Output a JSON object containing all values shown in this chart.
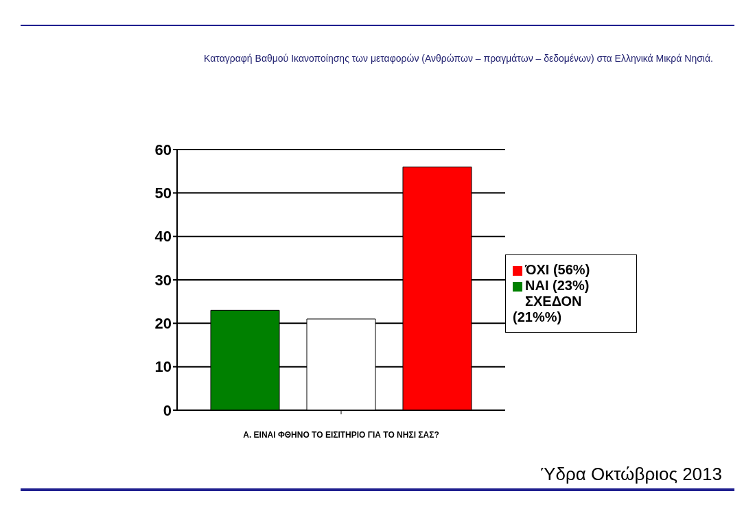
{
  "chart_data": {
    "type": "bar",
    "title": "Καταγραφή Βαθμού Ικανοποίησης των μεταφορών (Ανθρώπων – πραγμάτων – δεδομένων) στα Ελληνικά Μικρά Νησιά.",
    "xlabel": "Α. ΕΙΝΑΙ ΦΘΗΝΟ ΤΟ ΕΙΣΙΤΗΡΙΟ ΓΙΑ ΤΟ ΝΗΣΙ ΣΑΣ?",
    "categories": [
      null
    ],
    "series": [
      {
        "name": "ΝΑΙ (23%)",
        "color": "#008000",
        "values": [
          23
        ]
      },
      {
        "name": "ΣΧΕΔΟΝ (21%%)",
        "color": "#ffffff",
        "values": [
          21
        ]
      },
      {
        "name": "ΌΧΙ  (56%)",
        "color": "#ff0000",
        "values": [
          56
        ]
      }
    ],
    "ylim": [
      0,
      60
    ],
    "yticks": [
      0,
      10,
      20,
      30,
      40,
      50,
      60
    ],
    "grid": "y",
    "legend": "right",
    "annotations": [
      "Ύδρα Οκτώβριος 2013"
    ]
  }
}
